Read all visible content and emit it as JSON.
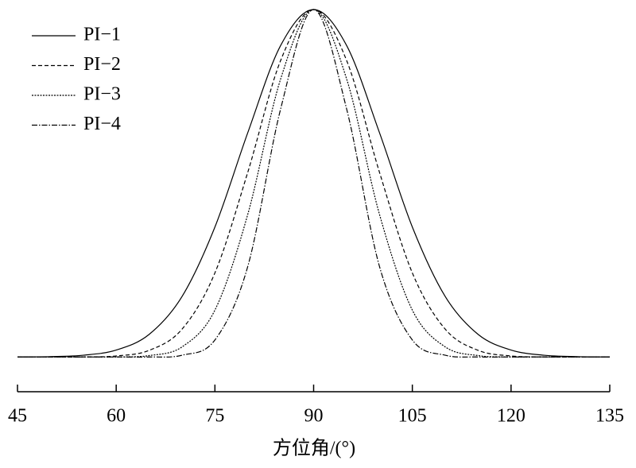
{
  "chart_data": {
    "type": "line",
    "xlabel": "方位角/(°)",
    "x": [
      45,
      50,
      55,
      60,
      65,
      70,
      75,
      80,
      85,
      90,
      95,
      100,
      105,
      110,
      115,
      120,
      125,
      130,
      135
    ],
    "xlim": [
      45,
      135
    ],
    "xticks": [
      45,
      60,
      75,
      90,
      105,
      120,
      135
    ],
    "ylim": [
      -0.1,
      1.0
    ],
    "legend": "upper-left",
    "series": [
      {
        "name": "PI−1",
        "color": "#000000",
        "dash": "none",
        "values": [
          0,
          0.001,
          0.005,
          0.02,
          0.065,
          0.174,
          0.374,
          0.646,
          0.897,
          1,
          0.897,
          0.646,
          0.374,
          0.174,
          0.065,
          0.02,
          0.005,
          0.001,
          0
        ]
      },
      {
        "name": "PI−2",
        "color": "#000000",
        "dash": "5,3",
        "values": [
          0,
          0,
          0,
          0.003,
          0.019,
          0.08,
          0.242,
          0.532,
          0.854,
          1,
          0.854,
          0.532,
          0.242,
          0.08,
          0.019,
          0.003,
          0,
          0,
          0
        ]
      },
      {
        "name": "PI−3",
        "color": "#000000",
        "dash": "2,1.5",
        "values": [
          0,
          0,
          0,
          0,
          0.004,
          0.029,
          0.135,
          0.411,
          0.801,
          1,
          0.801,
          0.411,
          0.135,
          0.029,
          0.004,
          0,
          0,
          0,
          0
        ]
      },
      {
        "name": "PI−4",
        "color": "#000000",
        "dash": "7,2,1.5,2",
        "values": [
          0,
          0,
          0,
          0,
          0,
          0.005,
          0.049,
          0.261,
          0.715,
          1,
          0.715,
          0.261,
          0.049,
          0.005,
          0,
          0,
          0,
          0,
          0
        ]
      }
    ]
  }
}
